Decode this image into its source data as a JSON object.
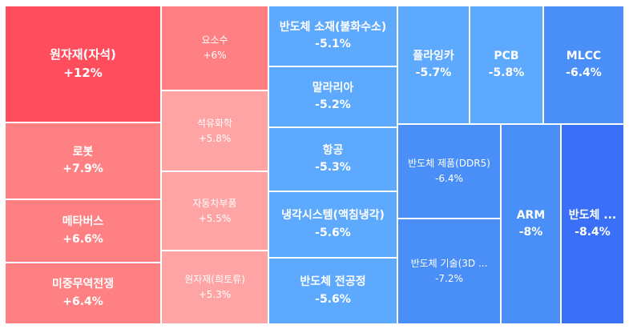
{
  "chart_data": {
    "type": "treemap",
    "title": "",
    "tiles": [
      {
        "name": "원자재(자석)",
        "change_label": "+12%",
        "value": 12,
        "color": "#ff4d5e"
      },
      {
        "name": "로봇",
        "change_label": "+7.9%",
        "value": 7.9,
        "color": "#ff8082"
      },
      {
        "name": "메타버스",
        "change_label": "+6.6%",
        "value": 6.6,
        "color": "#ff8082"
      },
      {
        "name": "미중무역전쟁",
        "change_label": "+6.4%",
        "value": 6.4,
        "color": "#ff8082"
      },
      {
        "name": "요소수",
        "change_label": "+6%",
        "value": 6,
        "color": "#ff8082"
      },
      {
        "name": "석유화학",
        "change_label": "+5.8%",
        "value": 5.8,
        "color": "#ffa4a4"
      },
      {
        "name": "자동차부품",
        "change_label": "+5.5%",
        "value": 5.5,
        "color": "#ffa4a4"
      },
      {
        "name": "원자재(희토류)",
        "change_label": "+5.3%",
        "value": 5.3,
        "color": "#ffa4a4"
      },
      {
        "name": "반도체 소재(불화수소)",
        "change_label": "-5.1%",
        "value": -5.1,
        "color": "#5da9fd"
      },
      {
        "name": "말라리아",
        "change_label": "-5.2%",
        "value": -5.2,
        "color": "#5da9fd"
      },
      {
        "name": "항공",
        "change_label": "-5.3%",
        "value": -5.3,
        "color": "#5da9fd"
      },
      {
        "name": "냉각시스템(액침냉각)",
        "change_label": "-5.6%",
        "value": -5.6,
        "color": "#5da9fd"
      },
      {
        "name": "반도체 전공정",
        "change_label": "-5.6%",
        "value": -5.6,
        "color": "#5da9fd"
      },
      {
        "name": "플라잉카",
        "change_label": "-5.7%",
        "value": -5.7,
        "color": "#5da9fd"
      },
      {
        "name": "PCB",
        "change_label": "-5.8%",
        "value": -5.8,
        "color": "#5da9fd"
      },
      {
        "name": "MLCC",
        "change_label": "-6.4%",
        "value": -6.4,
        "color": "#4a8ef8"
      },
      {
        "name": "반도체 제품(DDR5)",
        "change_label": "-6.4%",
        "value": -6.4,
        "color": "#4a8ef8"
      },
      {
        "name": "반도체 기술(3D ...",
        "change_label": "-7.2%",
        "value": -7.2,
        "color": "#4a8ef8"
      },
      {
        "name": "ARM",
        "change_label": "-8%",
        "value": -8,
        "color": "#4a8ef8"
      },
      {
        "name": "반도체 ...",
        "change_label": "-8.4%",
        "value": -8.4,
        "color": "#3a6ff8"
      }
    ]
  }
}
